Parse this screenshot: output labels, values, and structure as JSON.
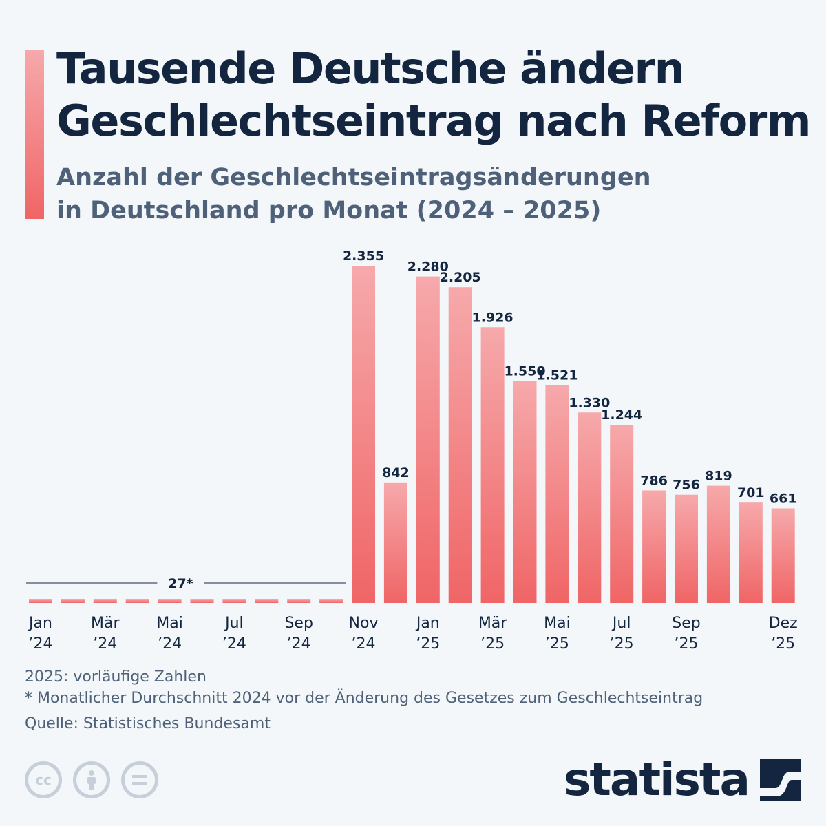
{
  "header": {
    "title_line1": "Tausende Deutsche ändern",
    "title_line2": "Geschlechtseintrag nach Reform",
    "subtitle_line1": "Anzahl der Geschlechtseintragsänderungen",
    "subtitle_line2": "in Deutschland pro Monat (2024 – 2025)"
  },
  "colors": {
    "bar_top": "#f6a9ab",
    "bar_bottom": "#f06566",
    "text_dark": "#13253f",
    "text_muted": "#4e6178",
    "background": "#f4f7fa"
  },
  "chart_data": {
    "type": "bar",
    "categories": [
      "Jan 2024",
      "Feb 2024",
      "Mär 2024",
      "Apr 2024",
      "Mai 2024",
      "Jun 2024",
      "Jul 2024",
      "Aug 2024",
      "Sep 2024",
      "Okt 2024",
      "Nov 2024",
      "Dez 2024",
      "Jan 2025",
      "Feb 2025",
      "Mär 2025",
      "Apr 2025",
      "Mai 2025",
      "Jun 2025",
      "Jul 2025",
      "Aug 2025",
      "Sep 2025",
      "Okt 2025",
      "Nov 2025",
      "Dez 2025"
    ],
    "values": [
      27,
      27,
      27,
      27,
      27,
      27,
      27,
      27,
      27,
      27,
      2355,
      842,
      2280,
      2205,
      1926,
      1550,
      1521,
      1330,
      1244,
      786,
      756,
      819,
      701,
      661
    ],
    "value_labels": [
      "",
      "",
      "",
      "",
      "",
      "",
      "",
      "",
      "",
      "",
      "2.355",
      "842",
      "2.280",
      "2.205",
      "1.926",
      "1.550",
      "1.521",
      "1.330",
      "1.244",
      "786",
      "756",
      "819",
      "701",
      "661"
    ],
    "average_label": "27*",
    "x_ticks": [
      {
        "index": 0,
        "line1": "Jan",
        "line2": "’24"
      },
      {
        "index": 2,
        "line1": "Mär",
        "line2": "’24"
      },
      {
        "index": 4,
        "line1": "Mai",
        "line2": "’24"
      },
      {
        "index": 6,
        "line1": "Jul",
        "line2": "’24"
      },
      {
        "index": 8,
        "line1": "Sep",
        "line2": "’24"
      },
      {
        "index": 10,
        "line1": "Nov",
        "line2": "’24"
      },
      {
        "index": 12,
        "line1": "Jan",
        "line2": "’25"
      },
      {
        "index": 14,
        "line1": "Mär",
        "line2": "’25"
      },
      {
        "index": 16,
        "line1": "Mai",
        "line2": "’25"
      },
      {
        "index": 18,
        "line1": "Jul",
        "line2": "’25"
      },
      {
        "index": 20,
        "line1": "Sep",
        "line2": "’25"
      },
      {
        "index": 23,
        "line1": "Dez",
        "line2": "’25"
      }
    ],
    "ylim": [
      0,
      2355
    ],
    "grid": false,
    "legend": "none"
  },
  "footnotes": {
    "note1": "2025: vorläufige Zahlen",
    "note2": "* Monatlicher Durchschnitt 2024 vor der Änderung des Gesetzes zum Geschlechtseintrag",
    "source": "Quelle: Statistisches Bundesamt"
  },
  "footer": {
    "cc_icons": [
      "cc-icon",
      "person-icon",
      "equals-icon"
    ],
    "cc_text": "cc",
    "logo_text": "statista"
  }
}
